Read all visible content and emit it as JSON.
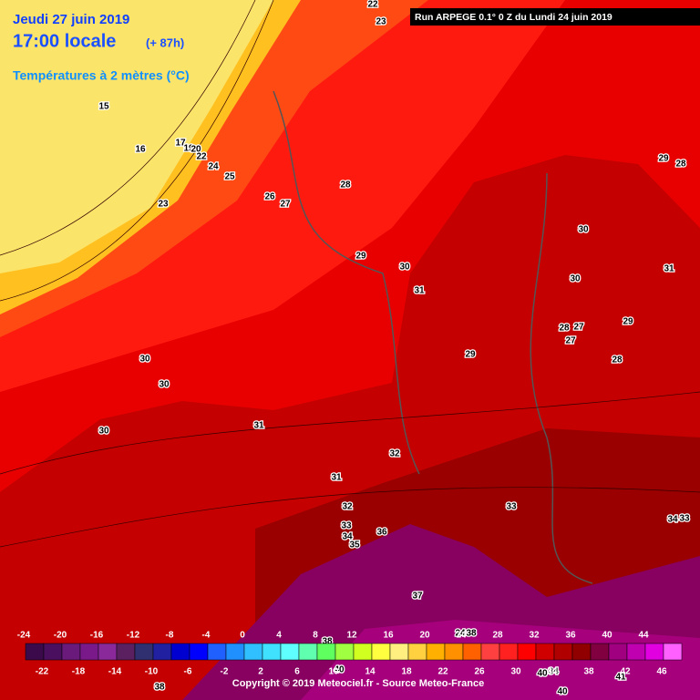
{
  "header": {
    "date": "Jeudi 27 juin 2019",
    "time": "17:00 locale",
    "lead": "(+ 87h)",
    "variable": "Températures à 2 mètres (°C)",
    "run": "Run ARPEGE 0.1° 0 Z du Lundi 24 juin 2019"
  },
  "contour_labels": [
    22,
    23,
    15,
    16,
    17,
    19,
    20,
    22,
    24,
    25,
    23,
    26,
    27,
    28,
    29,
    30,
    31,
    30,
    30,
    31,
    29,
    28,
    28,
    27,
    27,
    29,
    28,
    29,
    30,
    30,
    30,
    31,
    32,
    31,
    32,
    33,
    33,
    34,
    36,
    35,
    34,
    33,
    37,
    38,
    24,
    38,
    40,
    40,
    34,
    41,
    38,
    40
  ],
  "legend": {
    "labels": [
      -24,
      -22,
      -20,
      -18,
      -16,
      -14,
      -12,
      -10,
      -8,
      -6,
      -4,
      -2,
      0,
      2,
      4,
      6,
      8,
      10,
      12,
      14,
      16,
      18,
      20,
      22,
      24,
      26,
      28,
      30,
      32,
      34,
      36,
      38,
      40,
      42,
      44,
      46
    ],
    "colors": [
      "#3a0a4a",
      "#4b0f5f",
      "#6a1a7a",
      "#7a1a8a",
      "#8a2a9a",
      "#5a2060",
      "#303070",
      "#2020a0",
      "#0000d0",
      "#0000ff",
      "#2060ff",
      "#2090ff",
      "#30c0ff",
      "#40e0ff",
      "#60ffff",
      "#60ffb0",
      "#60ff60",
      "#a0ff40",
      "#d0ff20",
      "#ffff40",
      "#ffef80",
      "#ffd040",
      "#ffb000",
      "#ff9000",
      "#ff6000",
      "#ff4040",
      "#ff2020",
      "#ff0000",
      "#d00000",
      "#b00000",
      "#900000",
      "#800040",
      "#a00080",
      "#c000b0",
      "#e000e0",
      "#ff60ff"
    ]
  },
  "footer": {
    "copyright": "Copyright © 2019 Meteociel.fr - Source Meteo-France"
  }
}
